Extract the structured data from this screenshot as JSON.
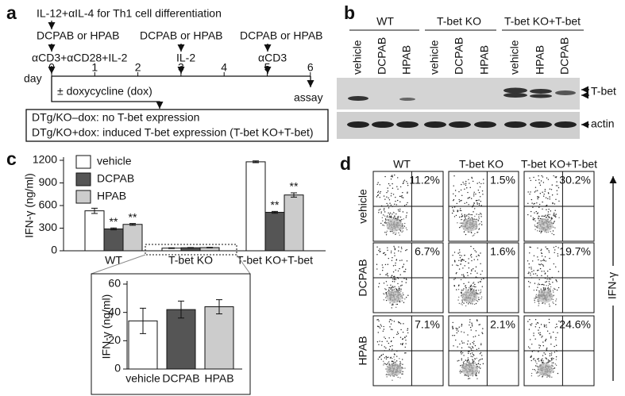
{
  "panel_a": {
    "label": "a",
    "step_top": "IL-12+αIL-4 for Th1 cell differentiation",
    "drug_0": "DCPAB or HPAB",
    "drug_1": "DCPAB or HPAB",
    "drug_2": "DCPAB or HPAB",
    "stim_0": "αCD3+αCD28+IL-2",
    "stim_1": "IL-2",
    "stim_2": "αCD3",
    "day_label": "day",
    "days": [
      0,
      1,
      2,
      3,
      4,
      5,
      6
    ],
    "dox": "± doxycycline (dox)",
    "assay": "assay",
    "note_0": "DTg/KO–dox: no T-bet expression",
    "note_1": "DTg/KO+dox: induced T-bet expression (T-bet KO+T-bet)"
  },
  "panel_b": {
    "label": "b",
    "groups": [
      "WT",
      "T-bet KO",
      "T-bet KO+T-bet"
    ],
    "lanes": [
      "vehicle",
      "DCPAB",
      "HPAB",
      "vehicle",
      "DCPAB",
      "HPAB",
      "vehicle",
      "HPAB",
      "DCPAB"
    ],
    "bands": [
      "T-bet",
      "actin"
    ]
  },
  "panel_c": {
    "label": "c"
  },
  "chart_data": [
    {
      "type": "bar",
      "ylabel": "IFN-γ (ng/ml)",
      "categories": [
        "WT",
        "T-bet KO",
        "T-bet KO+T-bet"
      ],
      "ylim": [
        0,
        1200
      ],
      "yticks": [
        0,
        300,
        600,
        900,
        1200
      ],
      "series": [
        {
          "name": "vehicle",
          "color": "#ffffff",
          "values": [
            530,
            35,
            1180
          ],
          "errors": [
            35,
            5,
            12
          ],
          "markers": [
            null,
            null,
            null
          ]
        },
        {
          "name": "DCPAB",
          "color": "#555555",
          "values": [
            290,
            40,
            510
          ],
          "errors": [
            12,
            4,
            12
          ],
          "markers": [
            "**",
            null,
            "**"
          ]
        },
        {
          "name": "HPAB",
          "color": "#cccccc",
          "values": [
            350,
            42,
            740
          ],
          "errors": [
            12,
            4,
            28
          ],
          "markers": [
            "**",
            null,
            "**"
          ]
        }
      ]
    },
    {
      "type": "bar",
      "ylabel": "IFN-γ (ng/ml)",
      "categories": [
        "vehicle",
        "DCPAB",
        "HPAB"
      ],
      "values": [
        34,
        42,
        44
      ],
      "errors": [
        9,
        6,
        5
      ],
      "colors": [
        "#ffffff",
        "#555555",
        "#cccccc"
      ],
      "ylim": [
        0,
        60
      ],
      "yticks": [
        0,
        20,
        40,
        60
      ]
    }
  ],
  "panel_d": {
    "label": "d",
    "columns": [
      "WT",
      "T-bet KO",
      "T-bet KO+T-bet"
    ],
    "rows": [
      "vehicle",
      "DCPAB",
      "HPAB"
    ],
    "percentages": [
      [
        "11.2%",
        "1.5%",
        "30.2%"
      ],
      [
        "6.7%",
        "1.6%",
        "19.7%"
      ],
      [
        "7.1%",
        "2.1%",
        "24.6%"
      ]
    ],
    "axis": "IFN-γ"
  }
}
